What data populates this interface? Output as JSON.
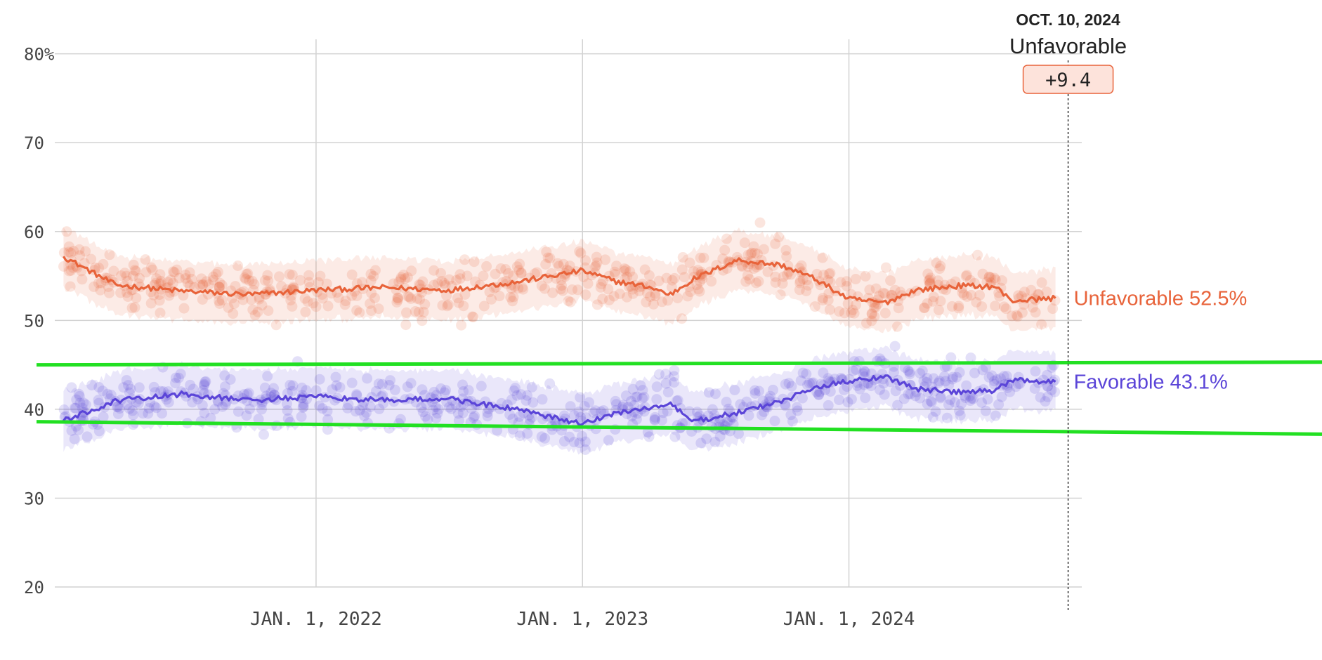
{
  "chart_data": {
    "type": "line",
    "x": [
      "2021-01-20",
      "2021-04-01",
      "2021-07-01",
      "2021-10-01",
      "2022-01-01",
      "2022-04-01",
      "2022-07-01",
      "2022-10-01",
      "2023-01-01",
      "2023-02-15",
      "2023-04-01",
      "2023-05-01",
      "2023-06-01",
      "2023-08-01",
      "2023-10-01",
      "2023-11-15",
      "2024-01-01",
      "2024-02-20",
      "2024-04-01",
      "2024-06-01",
      "2024-07-20",
      "2024-08-10",
      "2024-10-10"
    ],
    "series": [
      {
        "name": "Unfavorable",
        "color": "#E8633A",
        "values": [
          57.2,
          54.0,
          53.3,
          52.9,
          53.4,
          53.7,
          53.4,
          54.3,
          55.6,
          54.4,
          53.8,
          52.9,
          54.6,
          56.8,
          56.2,
          54.7,
          52.4,
          52.0,
          53.4,
          53.9,
          53.8,
          52.2,
          52.5
        ]
      },
      {
        "name": "Favorable",
        "color": "#5B45D8",
        "values": [
          38.7,
          40.9,
          41.7,
          41.0,
          41.4,
          41.0,
          41.2,
          40.0,
          38.3,
          39.6,
          40.1,
          40.6,
          38.6,
          39.6,
          40.9,
          42.4,
          43.2,
          43.7,
          42.3,
          41.9,
          42.1,
          43.3,
          43.1
        ]
      }
    ],
    "band_lower": [
      38.6,
      37.2
    ],
    "band_upper": [
      45.0,
      45.3
    ],
    "band_color": "#22E022",
    "xlim": [
      "2021-01-10",
      "2024-11-15"
    ],
    "ylim": [
      20,
      81
    ],
    "yticks": [
      20,
      30,
      40,
      50,
      60,
      70,
      80
    ],
    "ytick_labels": [
      "20",
      "30",
      "40",
      "50",
      "60",
      "70",
      "80%"
    ],
    "xticks": [
      "2022-01-01",
      "2023-01-01",
      "2024-01-01"
    ],
    "xtick_labels": [
      "JAN. 1, 2022",
      "JAN. 1, 2023",
      "JAN. 1, 2024"
    ],
    "grid": true,
    "end_labels": [
      "Unfavorable 52.5%",
      "Favorable 43.1%"
    ],
    "tooltip": {
      "date_label": "OCT. 10, 2024",
      "date": "2024-10-10",
      "series": "Unfavorable",
      "value": "+9.4"
    }
  }
}
